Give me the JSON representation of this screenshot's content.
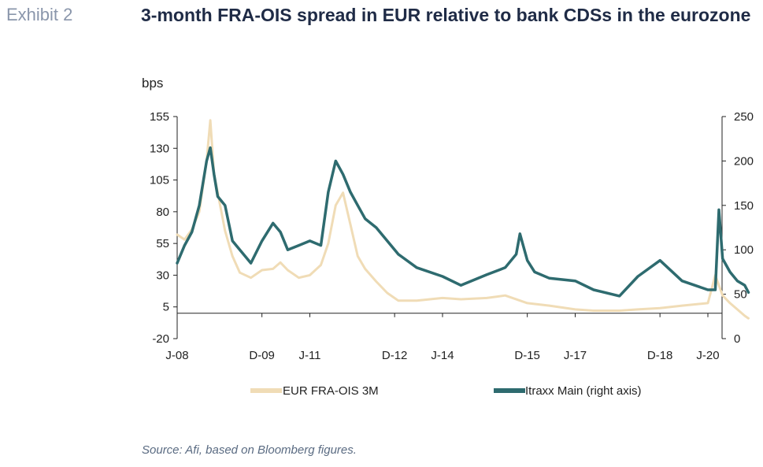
{
  "header": {
    "exhibit": "Exhibit 2",
    "title": "3-month FRA-OIS spread in EUR relative to bank CDSs in the eurozone"
  },
  "source": "Source: Afi, based on Bloomberg figures.",
  "colors": {
    "fra": "#f0dcb6",
    "itraxx": "#2e6b6f",
    "axis": "#222222"
  },
  "chart_data": {
    "type": "line",
    "unit_label": "bps",
    "x_tick_labels": [
      "J-08",
      "D-09",
      "J-11",
      "D-12",
      "J-14",
      "D-15",
      "J-17",
      "D-18",
      "J-20"
    ],
    "x_tick_dates": [
      "2008-01",
      "2009-12",
      "2011-01",
      "2012-12",
      "2014-01",
      "2015-12",
      "2017-01",
      "2018-12",
      "2020-01"
    ],
    "left_axis": {
      "ylim": [
        -20,
        155
      ],
      "ticks": [
        155,
        130,
        105,
        80,
        55,
        30,
        5,
        -20
      ]
    },
    "right_axis": {
      "ylim": [
        0,
        250
      ],
      "ticks": [
        250,
        200,
        150,
        100,
        50,
        0
      ]
    },
    "series": [
      {
        "name": "EUR FRA-OIS 3M",
        "axis": "left",
        "x": [
          "2008-01",
          "2008-03",
          "2008-05",
          "2008-07",
          "2008-09",
          "2008-10",
          "2008-11",
          "2008-12",
          "2009-02",
          "2009-04",
          "2009-06",
          "2009-09",
          "2009-12",
          "2010-03",
          "2010-05",
          "2010-07",
          "2010-10",
          "2011-01",
          "2011-04",
          "2011-06",
          "2011-08",
          "2011-10",
          "2011-12",
          "2012-02",
          "2012-04",
          "2012-07",
          "2012-10",
          "2013-01",
          "2013-06",
          "2014-01",
          "2014-06",
          "2015-01",
          "2015-06",
          "2015-12",
          "2016-06",
          "2017-01",
          "2017-06",
          "2018-01",
          "2018-06",
          "2018-12",
          "2019-06",
          "2020-01",
          "2020-03",
          "2020-04",
          "2020-05",
          "2020-07",
          "2020-09",
          "2020-11",
          "2020-12"
        ],
        "values": [
          62,
          58,
          66,
          80,
          120,
          152,
          110,
          95,
          65,
          45,
          32,
          28,
          34,
          35,
          40,
          34,
          28,
          30,
          38,
          55,
          85,
          95,
          70,
          45,
          35,
          25,
          16,
          10,
          10,
          12,
          11,
          12,
          14,
          8,
          6,
          3,
          2,
          2,
          3,
          4,
          6,
          8,
          30,
          22,
          14,
          8,
          3,
          -2,
          -4
        ]
      },
      {
        "name": "Itraxx Main (right axis)",
        "axis": "right",
        "x": [
          "2008-01",
          "2008-03",
          "2008-05",
          "2008-07",
          "2008-09",
          "2008-10",
          "2008-11",
          "2008-12",
          "2009-02",
          "2009-04",
          "2009-06",
          "2009-09",
          "2009-12",
          "2010-03",
          "2010-05",
          "2010-07",
          "2010-10",
          "2011-01",
          "2011-04",
          "2011-06",
          "2011-08",
          "2011-10",
          "2011-12",
          "2012-02",
          "2012-04",
          "2012-07",
          "2012-10",
          "2013-01",
          "2013-06",
          "2014-01",
          "2014-06",
          "2015-01",
          "2015-06",
          "2015-09",
          "2015-10",
          "2015-12",
          "2016-02",
          "2016-06",
          "2017-01",
          "2017-06",
          "2018-01",
          "2018-06",
          "2018-12",
          "2019-06",
          "2020-01",
          "2020-03",
          "2020-04",
          "2020-05",
          "2020-07",
          "2020-09",
          "2020-11",
          "2020-12"
        ],
        "values": [
          85,
          105,
          120,
          150,
          200,
          215,
          185,
          160,
          150,
          110,
          100,
          85,
          110,
          130,
          120,
          100,
          105,
          110,
          105,
          165,
          200,
          185,
          165,
          150,
          135,
          125,
          110,
          95,
          80,
          70,
          60,
          72,
          80,
          95,
          118,
          88,
          75,
          68,
          65,
          55,
          48,
          70,
          88,
          65,
          55,
          55,
          145,
          90,
          75,
          65,
          60,
          52
        ]
      }
    ],
    "grid": false,
    "legend_position": "bottom"
  }
}
